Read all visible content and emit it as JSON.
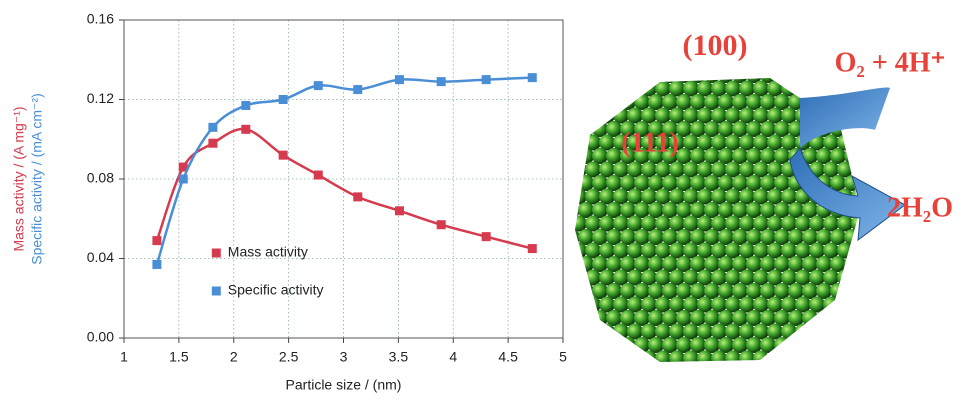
{
  "chart_data": {
    "type": "line",
    "xlabel": "Particle size / (nm)",
    "ylabels": [
      "Mass activity / (A mg⁻¹)",
      "Specific activity / (mA cm⁻²)"
    ],
    "ylabel_colors": [
      "#d63a4e",
      "#4a8fd6"
    ],
    "x": [
      1.3,
      1.54,
      1.81,
      2.11,
      2.45,
      2.77,
      3.13,
      3.51,
      3.89,
      4.3,
      4.72
    ],
    "series": [
      {
        "name": "Mass activity",
        "color": "#d63a4e",
        "values": [
          0.049,
          0.086,
          0.098,
          0.105,
          0.092,
          0.082,
          0.071,
          0.064,
          0.057,
          0.051,
          0.045
        ]
      },
      {
        "name": "Specific activity",
        "color": "#4a8fd6",
        "values": [
          0.037,
          0.08,
          0.106,
          0.117,
          0.12,
          0.127,
          0.125,
          0.13,
          0.129,
          0.13,
          0.131
        ]
      }
    ],
    "xlim": [
      1,
      5
    ],
    "xticks": [
      1,
      1.5,
      2,
      2.5,
      3,
      3.5,
      4,
      4.5,
      5
    ],
    "ylim": [
      0,
      0.16
    ],
    "yticks": [
      {
        "value": 0,
        "label": "0.00"
      },
      {
        "value": 0.04,
        "label": "0.04"
      },
      {
        "value": 0.08,
        "label": "0.08"
      },
      {
        "value": 0.12,
        "label": "0.12"
      },
      {
        "value": 0.16,
        "label": "0.16"
      }
    ],
    "grid": true,
    "legend": "lower center"
  },
  "illustration": {
    "facet_top": "(100)",
    "facet_side": "(111)",
    "reactants": "O₂ + 4H⁺",
    "product": "2H₂O"
  }
}
